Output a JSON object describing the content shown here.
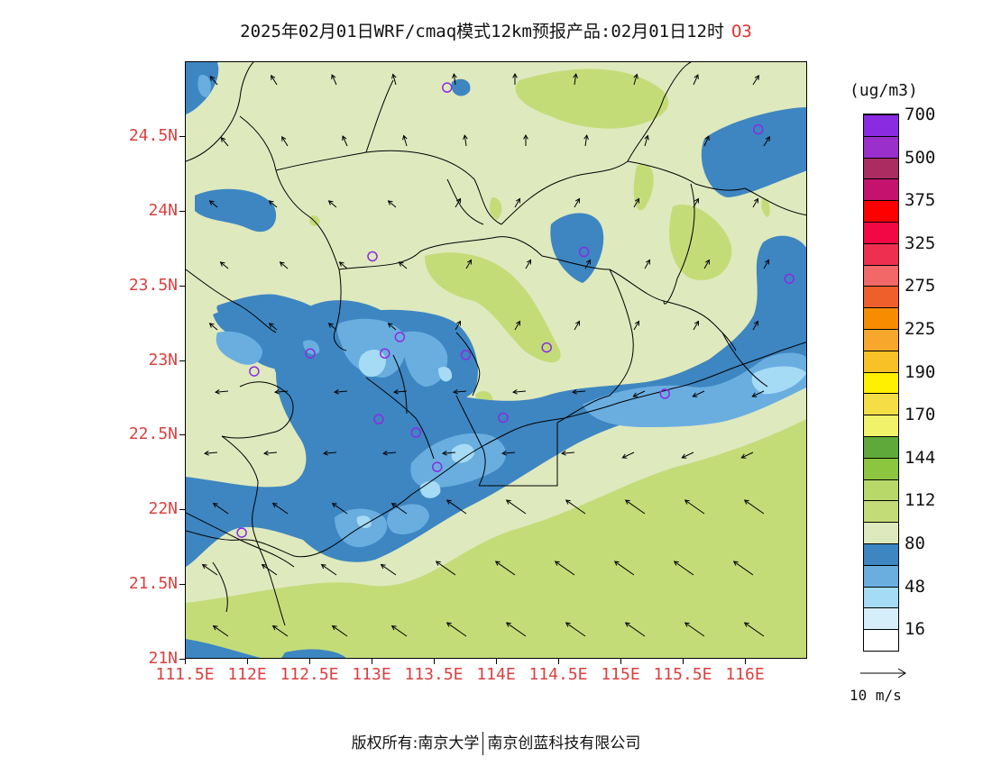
{
  "header": {
    "title": "2025年02月01日WRF/cmaq模式12km预报产品:02月01日12时",
    "species": "O3"
  },
  "axes": {
    "y_ticks": [
      "24.5N",
      "24N",
      "23.5N",
      "23N",
      "22.5N",
      "22N",
      "21.5N",
      "21N"
    ],
    "x_ticks": [
      "111.5E",
      "112E",
      "112.5E",
      "113E",
      "113.5E",
      "114E",
      "114.5E",
      "115E",
      "115.5E",
      "116E"
    ]
  },
  "legend": {
    "unit": "(ug/m3)",
    "levels": [
      {
        "color": "#ffffff",
        "label": "16"
      },
      {
        "color": "#d6eefa",
        "label": ""
      },
      {
        "color": "#a6dbf5",
        "label": "48"
      },
      {
        "color": "#6aaee0",
        "label": ""
      },
      {
        "color": "#3d86c1",
        "label": "80"
      },
      {
        "color": "#dfe9be",
        "label": ""
      },
      {
        "color": "#c4dc78",
        "label": "112"
      },
      {
        "color": "#b8d96a",
        "label": ""
      },
      {
        "color": "#8cc63f",
        "label": "144"
      },
      {
        "color": "#5fa83a",
        "label": ""
      },
      {
        "color": "#f2f26a",
        "label": "170"
      },
      {
        "color": "#f5de45",
        "label": ""
      },
      {
        "color": "#ffef00",
        "label": "190"
      },
      {
        "color": "#f8c126",
        "label": ""
      },
      {
        "color": "#f6a72c",
        "label": "225"
      },
      {
        "color": "#f88c00",
        "label": ""
      },
      {
        "color": "#ef5f2c",
        "label": "275"
      },
      {
        "color": "#f26868",
        "label": ""
      },
      {
        "color": "#ee2f50",
        "label": "325"
      },
      {
        "color": "#f20844",
        "label": ""
      },
      {
        "color": "#ff0000",
        "label": "375"
      },
      {
        "color": "#c4126e",
        "label": ""
      },
      {
        "color": "#aa2c60",
        "label": "500"
      },
      {
        "color": "#9a2fcc",
        "label": ""
      },
      {
        "color": "#8a2be2",
        "label": "700"
      }
    ]
  },
  "vector_key": {
    "label": "10 m/s"
  },
  "footer": {
    "left": "版权所有:南京大学",
    "right": "南京创蓝科技有限公司"
  },
  "stations": [
    {
      "lon": 113.6,
      "lat": 24.83
    },
    {
      "lon": 116.1,
      "lat": 24.55
    },
    {
      "lon": 113.0,
      "lat": 23.7
    },
    {
      "lon": 114.7,
      "lat": 23.73
    },
    {
      "lon": 116.35,
      "lat": 23.55
    },
    {
      "lon": 112.5,
      "lat": 23.05
    },
    {
      "lon": 112.05,
      "lat": 22.93
    },
    {
      "lon": 113.1,
      "lat": 23.05
    },
    {
      "lon": 113.22,
      "lat": 23.16
    },
    {
      "lon": 113.75,
      "lat": 23.04
    },
    {
      "lon": 114.4,
      "lat": 23.09
    },
    {
      "lon": 113.05,
      "lat": 22.61
    },
    {
      "lon": 113.35,
      "lat": 22.52
    },
    {
      "lon": 114.05,
      "lat": 22.62
    },
    {
      "lon": 115.35,
      "lat": 22.78
    },
    {
      "lon": 113.52,
      "lat": 22.29
    },
    {
      "lon": 111.95,
      "lat": 21.85
    }
  ],
  "colors": {
    "tick_label": "#d94040",
    "station_circle": "#8a2be2"
  }
}
